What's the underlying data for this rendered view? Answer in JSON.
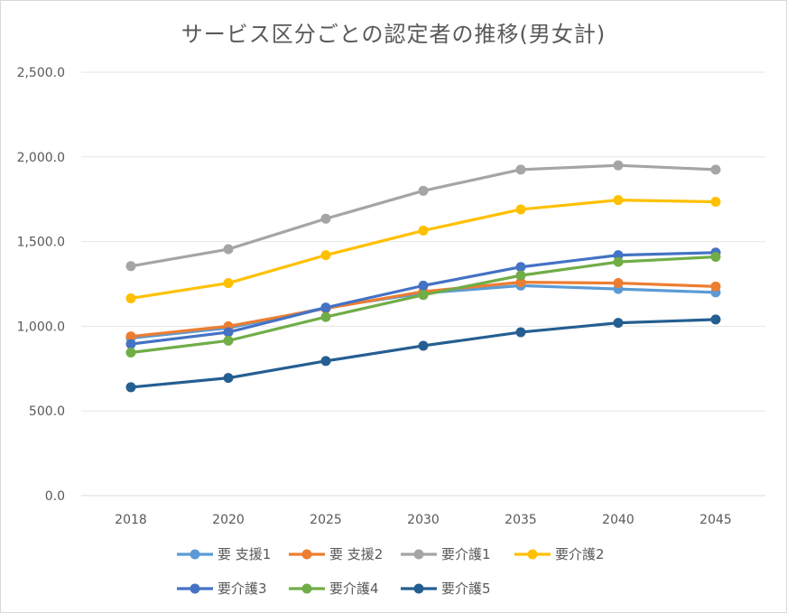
{
  "chart_data": {
    "type": "line",
    "title": "サービス区分ごとの認定者の推移(男女計)",
    "xlabel": "",
    "ylabel": "",
    "categories": [
      "2018",
      "2020",
      "2025",
      "2030",
      "2035",
      "2040",
      "2045"
    ],
    "ylim": [
      0,
      2500
    ],
    "yticks": [
      "0.0",
      "500.0",
      "1,000.0",
      "1,500.0",
      "2,000.0",
      "2,500.0"
    ],
    "grid": true,
    "legend_position": "bottom",
    "series": [
      {
        "name": "要 支援1",
        "color": "#5B9BD5",
        "values": [
          930,
          990,
          1110,
          1195,
          1240,
          1220,
          1200
        ]
      },
      {
        "name": "要 支援2",
        "color": "#ED7D31",
        "values": [
          940,
          1000,
          1105,
          1205,
          1260,
          1255,
          1235
        ]
      },
      {
        "name": "要介護1",
        "color": "#A5A5A5",
        "values": [
          1355,
          1455,
          1635,
          1800,
          1925,
          1950,
          1925
        ]
      },
      {
        "name": "要介護2",
        "color": "#FFC000",
        "values": [
          1165,
          1255,
          1420,
          1565,
          1690,
          1745,
          1735
        ]
      },
      {
        "name": "要介護3",
        "color": "#4472C4",
        "values": [
          895,
          965,
          1110,
          1240,
          1350,
          1420,
          1435
        ]
      },
      {
        "name": "要介護4",
        "color": "#70AD47",
        "values": [
          845,
          915,
          1055,
          1185,
          1300,
          1380,
          1410
        ]
      },
      {
        "name": "要介護5",
        "color": "#255E91",
        "values": [
          640,
          695,
          795,
          885,
          965,
          1020,
          1040
        ]
      }
    ]
  }
}
